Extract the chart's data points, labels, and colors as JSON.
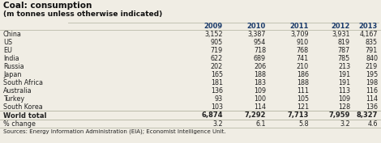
{
  "title": "Coal: consumption",
  "subtitle": "(m tonnes unless otherwise indicated)",
  "years": [
    "2009",
    "2010",
    "2011",
    "2012",
    "2013"
  ],
  "rows": [
    [
      "China",
      "3,152",
      "3,387",
      "3,709",
      "3,931",
      "4,167"
    ],
    [
      "US",
      "905",
      "954",
      "910",
      "819",
      "835"
    ],
    [
      "EU",
      "719",
      "718",
      "768",
      "787",
      "791"
    ],
    [
      "India",
      "622",
      "689",
      "741",
      "785",
      "840"
    ],
    [
      "Russia",
      "202",
      "206",
      "210",
      "213",
      "219"
    ],
    [
      "Japan",
      "165",
      "188",
      "186",
      "191",
      "195"
    ],
    [
      "South Africa",
      "181",
      "183",
      "188",
      "191",
      "198"
    ],
    [
      "Australia",
      "136",
      "109",
      "111",
      "113",
      "116"
    ],
    [
      "Turkey",
      "93",
      "100",
      "105",
      "109",
      "114"
    ],
    [
      "South Korea",
      "103",
      "114",
      "121",
      "128",
      "136"
    ]
  ],
  "total_row": [
    "World total",
    "6,874",
    "7,292",
    "7,713",
    "7,959",
    "8,327"
  ],
  "pct_change": [
    "% change",
    "3.2",
    "6.1",
    "5.8",
    "3.2",
    "4.6"
  ],
  "footer": "Sources: Energy Information Administration (EIA); Economist Intelligence Unit.",
  "bg_color": "#f0ede4",
  "stripe_color": "#e8e4da",
  "header_bg": "#d8d4ca",
  "line_color": "#bbbbaa",
  "title_color": "#111111",
  "text_color": "#222222",
  "year_color": "#1a3a6a",
  "total_bg": "#d8d4ca"
}
